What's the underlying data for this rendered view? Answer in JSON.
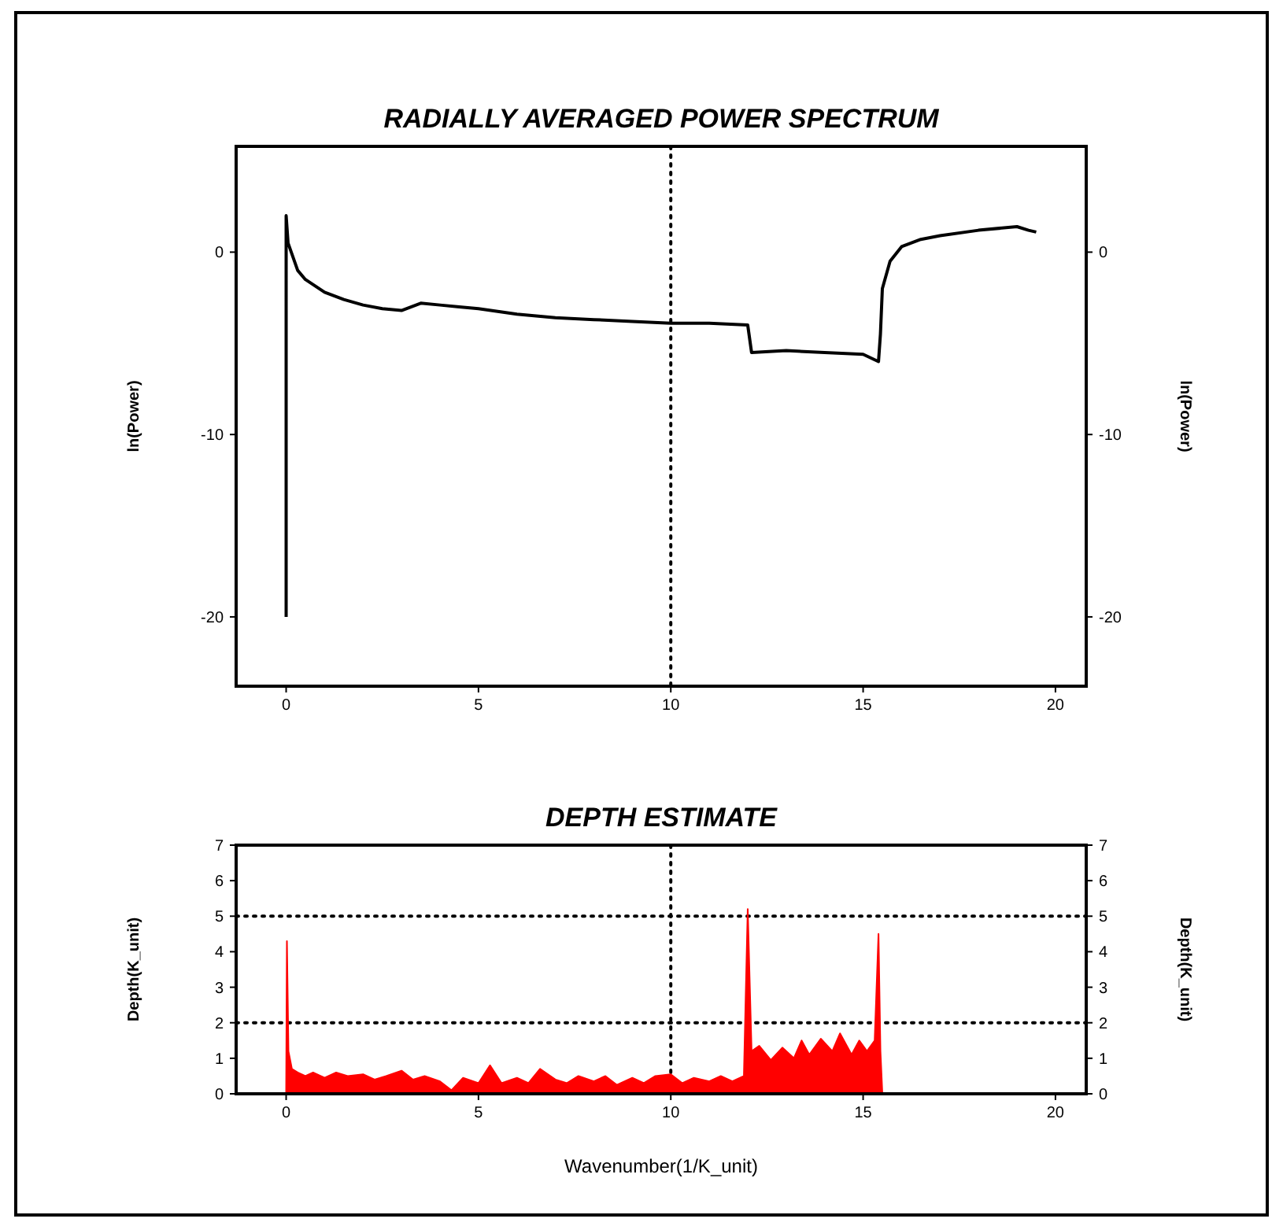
{
  "chart_data": [
    {
      "type": "line",
      "title": "RADIALLY AVERAGED POWER SPECTRUM",
      "ylabel": "ln(Power)",
      "y2label": "ln(Power)",
      "color": "#000000",
      "x": [
        0,
        0,
        0.05,
        0.3,
        0.5,
        1,
        1.5,
        2,
        2.5,
        3,
        3.5,
        4,
        4.5,
        5,
        6,
        7,
        8,
        9,
        10,
        11,
        12,
        12.1,
        13,
        14,
        15,
        15.4,
        15.45,
        15.5,
        15.7,
        16,
        16.5,
        17,
        18,
        19,
        19.3,
        19.5
      ],
      "values": [
        -20,
        2,
        0.5,
        -1,
        -1.5,
        -2.2,
        -2.6,
        -2.9,
        -3.1,
        -3.2,
        -2.8,
        -2.9,
        -3.0,
        -3.1,
        -3.4,
        -3.6,
        -3.7,
        -3.8,
        -3.9,
        -3.9,
        -4.0,
        -5.5,
        -5.4,
        -5.5,
        -5.6,
        -6.0,
        -4.5,
        -2,
        -0.5,
        0.3,
        0.7,
        0.9,
        1.2,
        1.4,
        1.2,
        1.1
      ],
      "xlim": [
        -1.3,
        20.8
      ],
      "xticks": [
        0,
        5,
        10,
        15,
        20
      ],
      "ylim": [
        -23.8,
        5.8
      ],
      "yticks": [
        -20,
        -10,
        0
      ],
      "y2lim": [
        -23.8,
        5.8
      ],
      "y2ticks": [
        -20,
        -10,
        0
      ],
      "ref_lines": [
        {
          "axis": "x",
          "value": 10,
          "color": "#000000",
          "line_style": "dotted"
        }
      ]
    },
    {
      "type": "area",
      "title": "DEPTH ESTIMATE",
      "xlabel": "Wavenumber(1/K_unit)",
      "ylabel": "Depth(K_unit)",
      "y2label": "Depth(K_unit)",
      "color": "#ff0000",
      "x": [
        0,
        0.02,
        0.06,
        0.15,
        0.3,
        0.5,
        0.7,
        1,
        1.3,
        1.6,
        2,
        2.3,
        2.6,
        3,
        3.3,
        3.6,
        4,
        4.3,
        4.6,
        5,
        5.3,
        5.6,
        6,
        6.3,
        6.6,
        7,
        7.3,
        7.6,
        8,
        8.3,
        8.6,
        9,
        9.3,
        9.6,
        10,
        10.3,
        10.6,
        11,
        11.3,
        11.6,
        11.9,
        12,
        12.1,
        12.3,
        12.6,
        12.9,
        13.2,
        13.4,
        13.6,
        13.9,
        14.2,
        14.4,
        14.7,
        14.9,
        15.1,
        15.3,
        15.4,
        15.45,
        15.5,
        19.5
      ],
      "values": [
        0,
        4.3,
        1.2,
        0.7,
        0.6,
        0.5,
        0.6,
        0.45,
        0.6,
        0.5,
        0.55,
        0.4,
        0.5,
        0.65,
        0.4,
        0.5,
        0.35,
        0.1,
        0.45,
        0.3,
        0.8,
        0.3,
        0.45,
        0.3,
        0.7,
        0.4,
        0.3,
        0.5,
        0.35,
        0.5,
        0.25,
        0.45,
        0.3,
        0.5,
        0.55,
        0.3,
        0.45,
        0.35,
        0.5,
        0.35,
        0.5,
        5.2,
        1.2,
        1.35,
        0.95,
        1.3,
        1.0,
        1.5,
        1.1,
        1.55,
        1.2,
        1.7,
        1.1,
        1.5,
        1.2,
        1.5,
        4.5,
        1.2,
        0,
        0
      ],
      "xlim": [
        -1.3,
        20.8
      ],
      "xticks": [
        0,
        5,
        10,
        15,
        20
      ],
      "ylim": [
        0,
        7
      ],
      "yticks": [
        0,
        1,
        2,
        3,
        4,
        5,
        6,
        7
      ],
      "y2lim": [
        0,
        7
      ],
      "y2ticks": [
        0,
        1,
        2,
        3,
        4,
        5,
        6,
        7
      ],
      "ref_lines": [
        {
          "axis": "x",
          "value": 10,
          "color": "#000000",
          "line_style": "dotted"
        },
        {
          "axis": "y",
          "value": 5,
          "color": "#000000",
          "line_style": "dotted"
        },
        {
          "axis": "y",
          "value": 2,
          "color": "#000000",
          "line_style": "dotted"
        }
      ]
    }
  ]
}
